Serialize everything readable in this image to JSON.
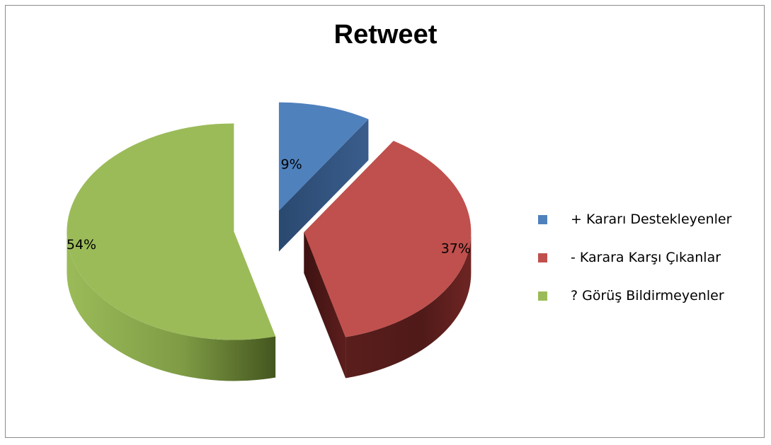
{
  "chart_data": {
    "type": "pie",
    "title": "Retweet",
    "categories": [
      "+ Kararı Destekleyenler",
      "- Karara Karşı Çıkanlar",
      "? Görüş Bildirmeyenler"
    ],
    "values": [
      9,
      37,
      54
    ],
    "value_labels": [
      "9%",
      "37%",
      "54%"
    ],
    "colors": [
      "#4f81bd",
      "#c0504d",
      "#9bbb59"
    ],
    "exploded": true,
    "style": "3d",
    "legend_position": "right"
  }
}
